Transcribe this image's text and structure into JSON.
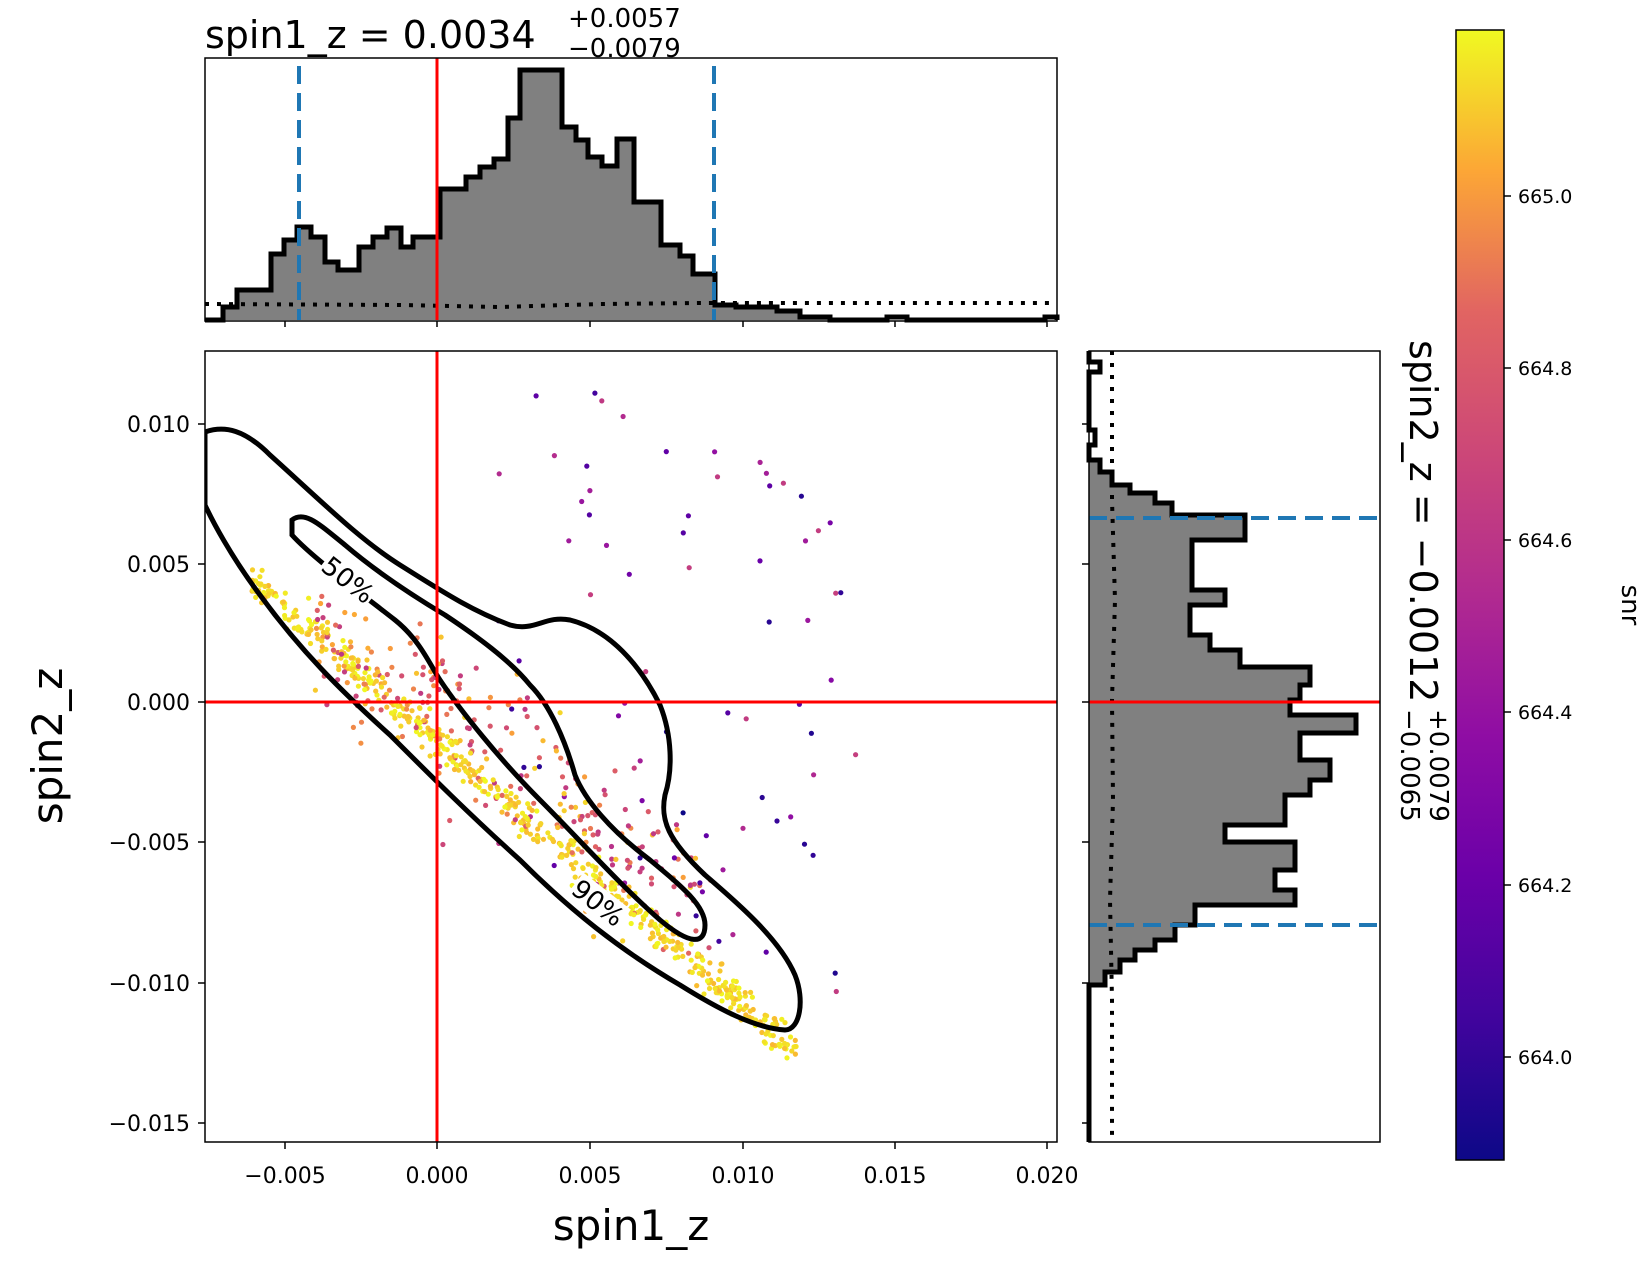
{
  "chart_data": {
    "type": "scatter",
    "title_top": {
      "main": "spin1_z = 0.0034",
      "upper": "+0.0057",
      "lower": "−0.0079"
    },
    "title_right": {
      "main": "spin2_z = −0.0012",
      "upper": "+0.0079",
      "lower": "−0.0065"
    },
    "xlabel": "spin1_z",
    "ylabel": "spin2_z",
    "colorbar_label": "snr",
    "xlim": [
      -0.0075,
      0.0203
    ],
    "ylim": [
      -0.0157,
      0.0125
    ],
    "xticks": [
      "−0.005",
      "0.000",
      "0.005",
      "0.010",
      "0.015",
      "0.020"
    ],
    "yticks": [
      "0.010",
      "0.005",
      "0.000",
      "−0.005",
      "−0.010",
      "−0.015"
    ],
    "colorbar": {
      "range": [
        663.85,
        665.18
      ],
      "ticks": [
        "665.0",
        "664.8",
        "664.6",
        "664.4",
        "664.2",
        "664.0"
      ],
      "colormap": "plasma"
    },
    "injected_value": {
      "spin1_z": 0.0,
      "spin2_z": 0.0,
      "color": "#ff0000"
    },
    "credible_interval_color": "#1f77b4",
    "spin1_z_interval": [
      -0.0045,
      0.0091
    ],
    "spin2_z_interval": [
      -0.0077,
      0.0067
    ],
    "contours": [
      {
        "label": "50%",
        "level": 0.5
      },
      {
        "label": "90%",
        "level": 0.9
      }
    ],
    "hist_fill": "#808080",
    "sample_count": 900
  }
}
